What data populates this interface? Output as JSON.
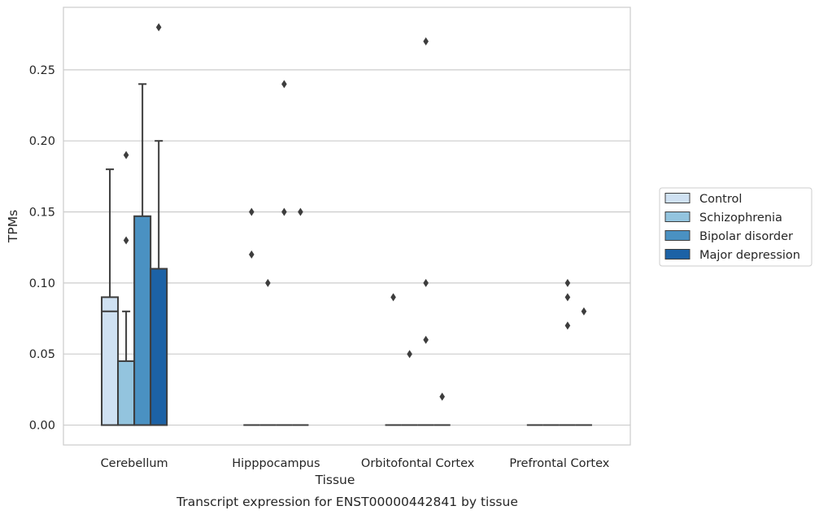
{
  "caption": "Transcript expression for ENST00000442841 by tissue",
  "chart_data": {
    "type": "boxplot",
    "xlabel": "Tissue",
    "ylabel": "TPMs",
    "ylim": [
      -0.014,
      0.294
    ],
    "yticks": [
      0.0,
      0.05,
      0.1,
      0.15,
      0.2,
      0.25
    ],
    "ytick_labels": [
      "0.00",
      "0.05",
      "0.10",
      "0.15",
      "0.20",
      "0.25"
    ],
    "grid": "horizontal",
    "legend_position": "right",
    "categories": [
      "Cerebellum",
      "Hipppocampus",
      "Orbitofontal Cortex",
      "Prefrontal Cortex"
    ],
    "series": [
      {
        "name": "Control",
        "color": "#cfe1f2",
        "boxes": [
          {
            "q1": 0.0,
            "median": 0.08,
            "q3": 0.09,
            "whisker_low": 0.0,
            "whisker_high": 0.18,
            "outliers": []
          },
          {
            "q1": 0.0,
            "median": 0.0,
            "q3": 0.0,
            "whisker_low": 0.0,
            "whisker_high": 0.0,
            "outliers": [
              0.15,
              0.12
            ]
          },
          {
            "q1": 0.0,
            "median": 0.0,
            "q3": 0.0,
            "whisker_low": 0.0,
            "whisker_high": 0.0,
            "outliers": [
              0.09
            ]
          },
          {
            "q1": 0.0,
            "median": 0.0,
            "q3": 0.0,
            "whisker_low": 0.0,
            "whisker_high": 0.0,
            "outliers": []
          }
        ]
      },
      {
        "name": "Schizophrenia",
        "color": "#93c4de",
        "boxes": [
          {
            "q1": 0.0,
            "median": 0.0,
            "q3": 0.045,
            "whisker_low": 0.0,
            "whisker_high": 0.08,
            "outliers": [
              0.19,
              0.13
            ]
          },
          {
            "q1": 0.0,
            "median": 0.0,
            "q3": 0.0,
            "whisker_low": 0.0,
            "whisker_high": 0.0,
            "outliers": [
              0.1
            ]
          },
          {
            "q1": 0.0,
            "median": 0.0,
            "q3": 0.0,
            "whisker_low": 0.0,
            "whisker_high": 0.0,
            "outliers": [
              0.05
            ]
          },
          {
            "q1": 0.0,
            "median": 0.0,
            "q3": 0.0,
            "whisker_low": 0.0,
            "whisker_high": 0.0,
            "outliers": []
          }
        ]
      },
      {
        "name": "Bipolar disorder",
        "color": "#4a91c2",
        "boxes": [
          {
            "q1": 0.0,
            "median": 0.0,
            "q3": 0.147,
            "whisker_low": 0.0,
            "whisker_high": 0.24,
            "outliers": []
          },
          {
            "q1": 0.0,
            "median": 0.0,
            "q3": 0.0,
            "whisker_low": 0.0,
            "whisker_high": 0.0,
            "outliers": [
              0.24,
              0.15
            ]
          },
          {
            "q1": 0.0,
            "median": 0.0,
            "q3": 0.0,
            "whisker_low": 0.0,
            "whisker_high": 0.0,
            "outliers": [
              0.27,
              0.1,
              0.06
            ]
          },
          {
            "q1": 0.0,
            "median": 0.0,
            "q3": 0.0,
            "whisker_low": 0.0,
            "whisker_high": 0.0,
            "outliers": [
              0.1,
              0.09,
              0.07
            ]
          }
        ]
      },
      {
        "name": "Major depression",
        "color": "#1c62a6",
        "boxes": [
          {
            "q1": 0.0,
            "median": 0.0,
            "q3": 0.11,
            "whisker_low": 0.0,
            "whisker_high": 0.2,
            "outliers": [
              0.28
            ]
          },
          {
            "q1": 0.0,
            "median": 0.0,
            "q3": 0.0,
            "whisker_low": 0.0,
            "whisker_high": 0.0,
            "outliers": [
              0.15
            ]
          },
          {
            "q1": 0.0,
            "median": 0.0,
            "q3": 0.0,
            "whisker_low": 0.0,
            "whisker_high": 0.0,
            "outliers": [
              0.02
            ]
          },
          {
            "q1": 0.0,
            "median": 0.0,
            "q3": 0.0,
            "whisker_low": 0.0,
            "whisker_high": 0.0,
            "outliers": [
              0.08
            ]
          }
        ]
      }
    ]
  }
}
